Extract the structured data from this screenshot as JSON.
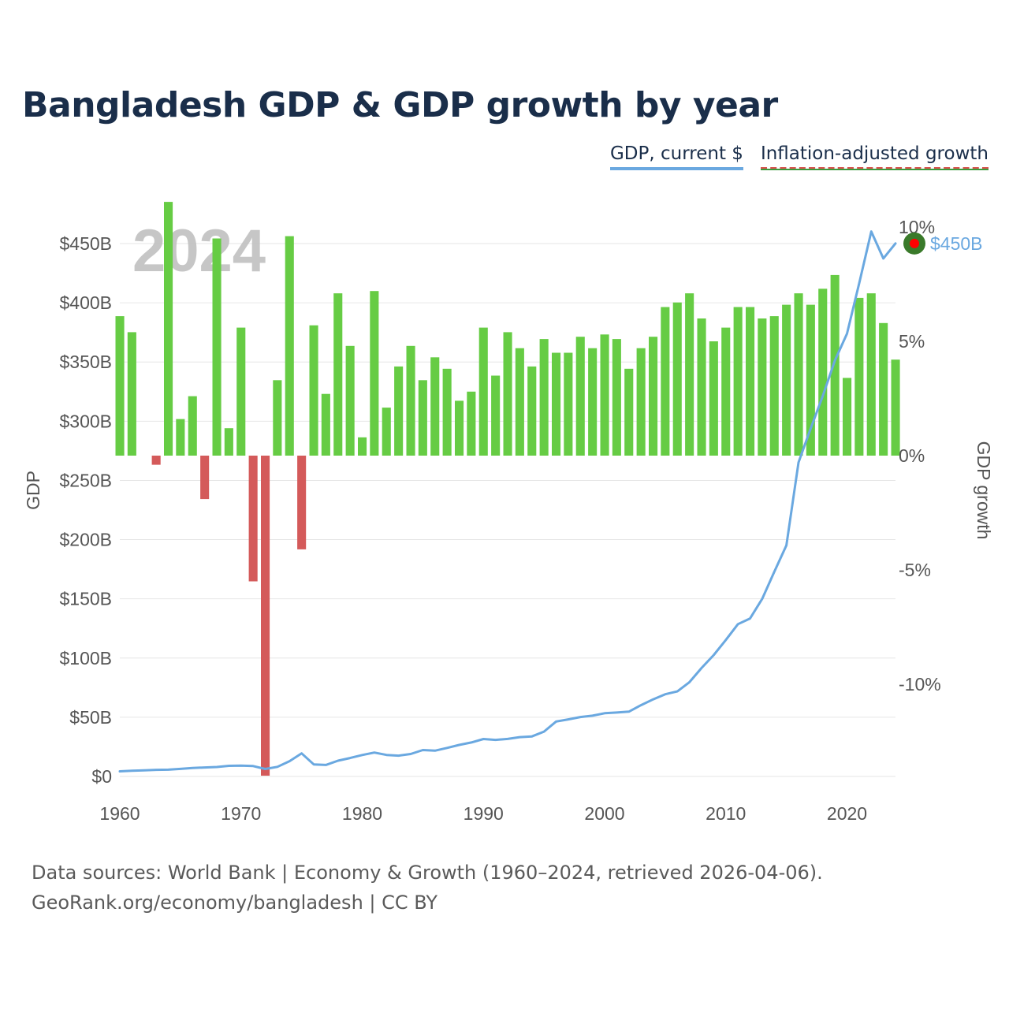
{
  "title": "Bangladesh GDP & GDP growth by year",
  "legend": {
    "gdp_label": "GDP, current $",
    "growth_label": "Inflation-adjusted growth"
  },
  "colors": {
    "gdp_line": "#6aa8e0",
    "growth_positive": "#66cc44",
    "growth_negative": "#d45a5a",
    "year_watermark": "#c0c0c0",
    "marker_outer": "#3a7a2a",
    "marker_inner": "#ff0000"
  },
  "year_watermark": "2024",
  "end_label": "$450B",
  "source": {
    "line1": "Data sources: World Bank | Economy & Growth (1960–2024, retrieved 2026-04-06).",
    "line2": "GeoRank.org/economy/bangladesh | CC BY"
  },
  "chart_data": {
    "type": "bar+line",
    "title": "Bangladesh GDP & GDP growth by year",
    "xlabel": "",
    "ylabel_left": "GDP",
    "ylabel_right": "GDP growth",
    "xlim": [
      1960,
      2024
    ],
    "ylim_left": [
      0,
      450
    ],
    "ylim_right": [
      -14,
      10
    ],
    "x_ticks": [
      "1960",
      "1970",
      "1980",
      "1990",
      "2000",
      "2010",
      "2020"
    ],
    "left_ticks": [
      {
        "value": 0,
        "label": "$0"
      },
      {
        "value": 50,
        "label": "$50B"
      },
      {
        "value": 100,
        "label": "$100B"
      },
      {
        "value": 150,
        "label": "$150B"
      },
      {
        "value": 200,
        "label": "$200B"
      },
      {
        "value": 250,
        "label": "$250B"
      },
      {
        "value": 300,
        "label": "$300B"
      },
      {
        "value": 350,
        "label": "$350B"
      },
      {
        "value": 400,
        "label": "$400B"
      },
      {
        "value": 450,
        "label": "$450B"
      }
    ],
    "right_ticks": [
      {
        "value": 10,
        "label": "10%"
      },
      {
        "value": 5,
        "label": "5%"
      },
      {
        "value": 0,
        "label": "0%"
      },
      {
        "value": -5,
        "label": "-5%"
      },
      {
        "value": -10,
        "label": "-10%"
      }
    ],
    "years": [
      1960,
      1961,
      1962,
      1963,
      1964,
      1965,
      1966,
      1967,
      1968,
      1969,
      1970,
      1971,
      1972,
      1973,
      1974,
      1975,
      1976,
      1977,
      1978,
      1979,
      1980,
      1981,
      1982,
      1983,
      1984,
      1985,
      1986,
      1987,
      1988,
      1989,
      1990,
      1991,
      1992,
      1993,
      1994,
      1995,
      1996,
      1997,
      1998,
      1999,
      2000,
      2001,
      2002,
      2003,
      2004,
      2005,
      2006,
      2007,
      2008,
      2009,
      2010,
      2011,
      2012,
      2013,
      2014,
      2015,
      2016,
      2017,
      2018,
      2019,
      2020,
      2021,
      2022,
      2023,
      2024
    ],
    "series": [
      {
        "name": "GDP, current $ (billions)",
        "axis": "left",
        "values": [
          4.3,
          4.8,
          5.1,
          5.6,
          5.7,
          6.4,
          7.1,
          7.6,
          8.0,
          9.0,
          9.2,
          8.8,
          6.3,
          8.1,
          12.9,
          19.5,
          10.2,
          9.7,
          13.3,
          15.6,
          18.1,
          20.2,
          18.2,
          17.6,
          19.0,
          22.3,
          21.8,
          24.1,
          26.6,
          28.7,
          31.6,
          30.9,
          31.7,
          33.2,
          33.8,
          37.9,
          46.4,
          48.2,
          50.2,
          51.3,
          53.4,
          54.0,
          54.7,
          60.2,
          65.1,
          69.4,
          71.8,
          79.6,
          91.6,
          102.5,
          115.3,
          128.6,
          133.4,
          150.0,
          172.9,
          195.1,
          265.2,
          293.8,
          321.4,
          351.2,
          374.0,
          416.3,
          460.2,
          437.4,
          450.1
        ]
      },
      {
        "name": "Inflation-adjusted growth (%)",
        "axis": "right",
        "values": [
          6.1,
          5.4,
          0,
          -0.4,
          11.1,
          1.6,
          2.6,
          -1.9,
          9.5,
          1.2,
          5.6,
          -5.5,
          -14.0,
          3.3,
          9.6,
          -4.1,
          5.7,
          2.7,
          7.1,
          4.8,
          0.8,
          7.2,
          2.1,
          3.9,
          4.8,
          3.3,
          4.3,
          3.8,
          2.4,
          2.8,
          5.6,
          3.5,
          5.4,
          4.7,
          3.9,
          5.1,
          4.5,
          4.5,
          5.2,
          4.7,
          5.3,
          5.1,
          3.8,
          4.7,
          5.2,
          6.5,
          6.7,
          7.1,
          6.0,
          5.0,
          5.6,
          6.5,
          6.5,
          6.0,
          6.1,
          6.6,
          7.1,
          6.6,
          7.3,
          7.9,
          3.4,
          6.9,
          7.1,
          5.8,
          4.2
        ]
      }
    ]
  }
}
